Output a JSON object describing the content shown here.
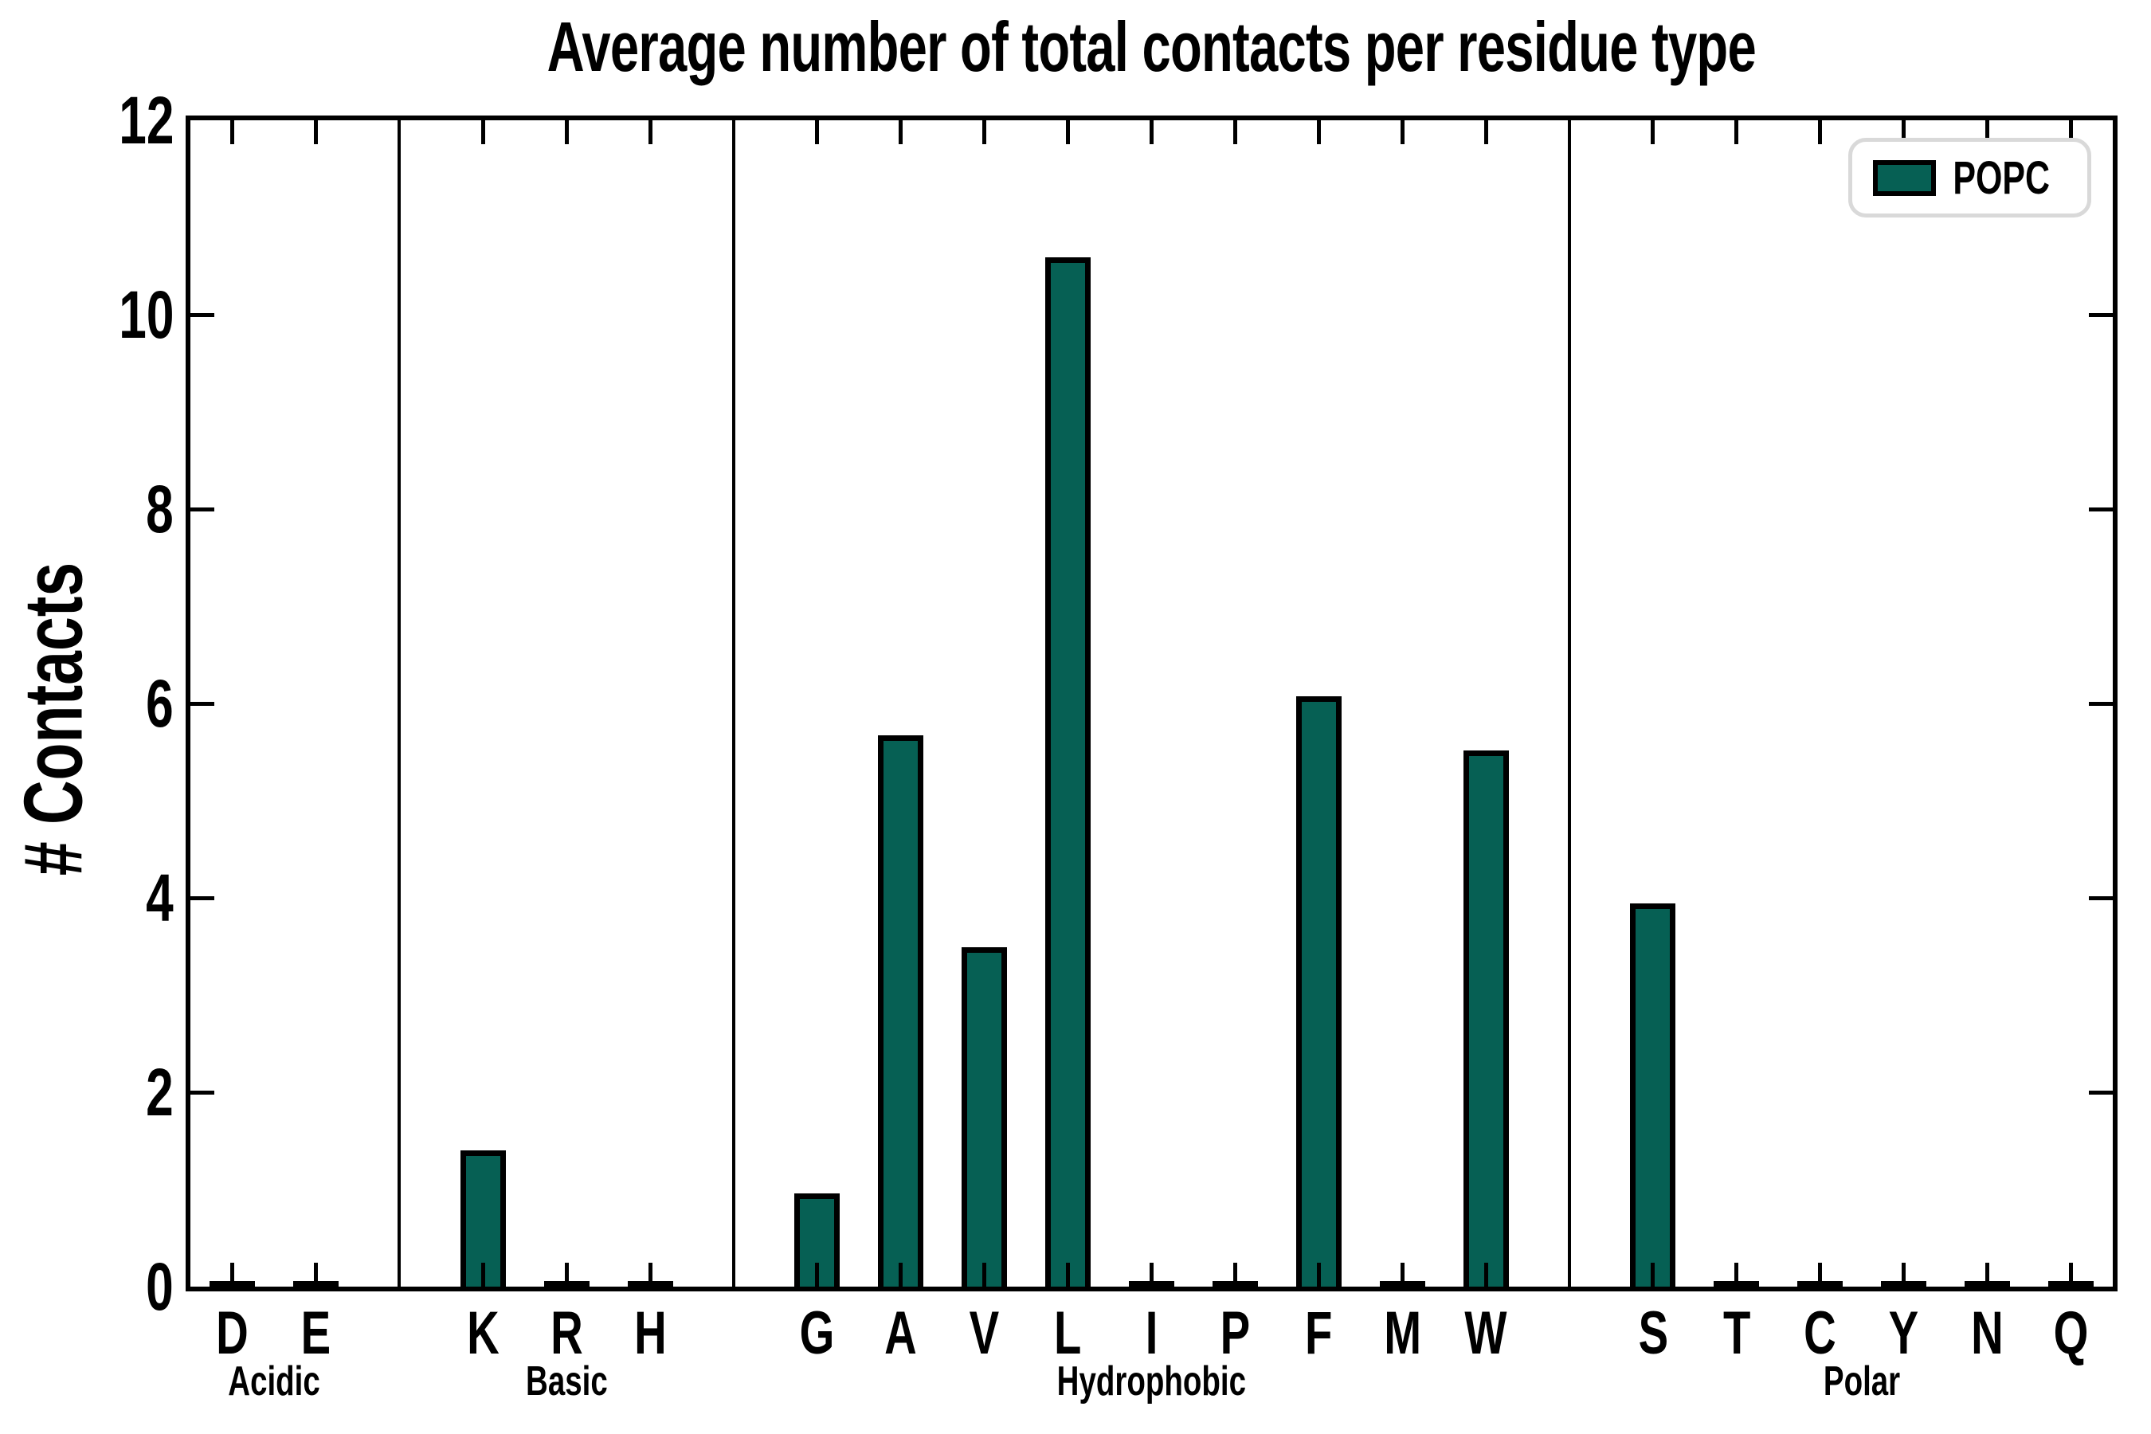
{
  "chart_data": {
    "type": "bar",
    "title": "Average number of total contacts per residue type",
    "ylabel": "# Contacts",
    "xlabel": "",
    "ylim": [
      0,
      12
    ],
    "yticks": [
      0,
      2,
      4,
      6,
      8,
      10,
      12
    ],
    "grid": false,
    "bar_color": "#066054",
    "bar_edge_color": "#000000",
    "group_separator_color": "#000000",
    "legend": {
      "position": "upper right",
      "entries": [
        {
          "label": "POPC",
          "color": "#066054"
        }
      ]
    },
    "groups": [
      {
        "name": "Acidic",
        "categories": [
          "D",
          "E"
        ],
        "values": [
          0.02,
          0.02
        ]
      },
      {
        "name": "Basic",
        "categories": [
          "K",
          "R",
          "H"
        ],
        "values": [
          1.4,
          0.02,
          0.02
        ]
      },
      {
        "name": "Hydrophobic",
        "categories": [
          "G",
          "A",
          "V",
          "L",
          "I",
          "P",
          "F",
          "M",
          "W"
        ],
        "values": [
          0.96,
          5.67,
          3.49,
          10.59,
          0.02,
          0.02,
          6.07,
          0.02,
          5.52
        ]
      },
      {
        "name": "Polar",
        "categories": [
          "S",
          "T",
          "C",
          "Y",
          "N",
          "Q"
        ],
        "values": [
          3.94,
          0.02,
          0.02,
          0.02,
          0.02,
          0.02
        ]
      }
    ]
  }
}
